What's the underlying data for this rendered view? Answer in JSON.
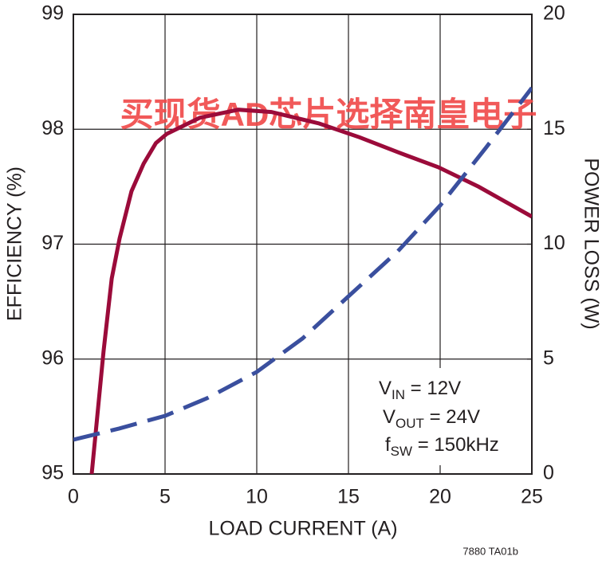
{
  "chart_data": {
    "type": "line",
    "xlabel": "LOAD CURRENT (A)",
    "ylabel": "EFFICIENCY (%)",
    "y2label": "POWER LOSS (W)",
    "xlim": [
      0,
      25
    ],
    "xticks": [
      0,
      5,
      10,
      15,
      20,
      25
    ],
    "ylim": [
      95,
      99
    ],
    "yticks": [
      95,
      96,
      97,
      98,
      99
    ],
    "y2lim": [
      0,
      20
    ],
    "y2ticks": [
      0,
      5,
      10,
      15,
      20
    ],
    "grid": true,
    "series": [
      {
        "name": "EFFICIENCY",
        "color": "#9b0b3a",
        "line_style": "solid",
        "x": [
          1.0,
          1.65,
          2.09,
          2.52,
          3.17,
          3.83,
          4.5,
          5.1,
          6.9,
          9.0,
          10.8,
          13.4,
          15.6,
          17.7,
          19.9,
          22.1,
          25.0
        ],
        "values": [
          95.0,
          96.07,
          96.7,
          97.05,
          97.46,
          97.7,
          97.88,
          97.96,
          98.1,
          98.17,
          98.15,
          98.05,
          97.93,
          97.8,
          97.67,
          97.5,
          97.24
        ]
      },
      {
        "name": "POWER LOSS",
        "color": "#3a4f9e",
        "line_style": "dashed",
        "axis": "y2",
        "x": [
          0,
          2.5,
          5,
          7.3,
          10,
          12.5,
          15,
          17.7,
          20,
          22.5,
          25
        ],
        "values": [
          1.49,
          1.98,
          2.53,
          3.3,
          4.44,
          5.9,
          7.73,
          9.7,
          11.68,
          14.2,
          16.8
        ]
      }
    ],
    "annotations": [
      [
        "V",
        "IN",
        " = 12V"
      ],
      [
        "V",
        "OUT",
        " = 24V"
      ],
      [
        "f",
        "SW",
        " = 150kHz"
      ]
    ],
    "watermark": "买现货AD芯片选择南皇电子",
    "figure_code": "7880 TA01b"
  }
}
